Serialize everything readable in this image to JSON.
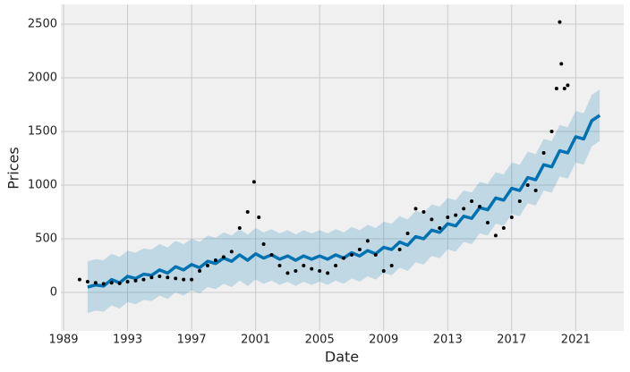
{
  "chart_data": {
    "type": "forecast",
    "x_label": "Date",
    "y_label": "Prices",
    "xlim": [
      1988.83,
      2024.0
    ],
    "ylim": [
      -358,
      2683
    ],
    "xticks": [
      1989,
      1993,
      1997,
      2001,
      2005,
      2009,
      2013,
      2017,
      2021
    ],
    "yticks": [
      0,
      500,
      1000,
      1500,
      2000,
      2500
    ],
    "grid": true,
    "actual": {
      "color": "#000000",
      "x": [
        1990.0,
        1990.5,
        1991.0,
        1991.5,
        1992.0,
        1992.5,
        1993.0,
        1993.5,
        1994.0,
        1994.5,
        1995.0,
        1995.5,
        1996.0,
        1996.5,
        1997.0,
        1997.5,
        1998.0,
        1998.5,
        1999.0,
        1999.5,
        2000.0,
        2000.5,
        2000.9,
        2001.2,
        2001.5,
        2002.0,
        2002.5,
        2003.0,
        2003.5,
        2004.0,
        2004.5,
        2005.0,
        2005.5,
        2006.0,
        2006.5,
        2007.0,
        2007.5,
        2008.0,
        2008.5,
        2009.0,
        2009.5,
        2010.0,
        2010.5,
        2011.0,
        2011.5,
        2012.0,
        2012.5,
        2013.0,
        2013.5,
        2014.0,
        2014.5,
        2015.0,
        2015.5,
        2016.0,
        2016.5,
        2017.0,
        2017.5,
        2018.0,
        2018.5,
        2019.0,
        2019.5,
        2019.8,
        2020.0,
        2020.1,
        2020.3,
        2020.5
      ],
      "values": [
        120,
        100,
        90,
        80,
        90,
        85,
        100,
        110,
        120,
        140,
        150,
        140,
        130,
        120,
        120,
        200,
        250,
        300,
        330,
        380,
        600,
        750,
        1030,
        700,
        450,
        350,
        250,
        180,
        200,
        250,
        220,
        200,
        180,
        250,
        320,
        350,
        400,
        480,
        350,
        200,
        250,
        400,
        550,
        780,
        750,
        680,
        600,
        700,
        720,
        780,
        850,
        800,
        650,
        530,
        600,
        700,
        850,
        1000,
        950,
        1300,
        1500,
        1900,
        2520,
        2130,
        1900,
        1930
      ]
    },
    "forecast": {
      "color": "#0072B2",
      "band_color": "#0072B2",
      "x": [
        1990.5,
        1991.0,
        1991.5,
        1992.0,
        1992.5,
        1993.0,
        1993.5,
        1994.0,
        1994.5,
        1995.0,
        1995.5,
        1996.0,
        1996.5,
        1997.0,
        1997.5,
        1998.0,
        1998.5,
        1999.0,
        1999.5,
        2000.0,
        2000.5,
        2001.0,
        2001.5,
        2002.0,
        2002.5,
        2003.0,
        2003.5,
        2004.0,
        2004.5,
        2005.0,
        2005.5,
        2006.0,
        2006.5,
        2007.0,
        2007.5,
        2008.0,
        2008.5,
        2009.0,
        2009.5,
        2010.0,
        2010.5,
        2011.0,
        2011.5,
        2012.0,
        2012.5,
        2013.0,
        2013.5,
        2014.0,
        2014.5,
        2015.0,
        2015.5,
        2016.0,
        2016.5,
        2017.0,
        2017.5,
        2018.0,
        2018.5,
        2019.0,
        2019.5,
        2020.0,
        2020.5,
        2021.0,
        2021.5,
        2022.0,
        2022.5
      ],
      "values": [
        50,
        70,
        60,
        120,
        90,
        150,
        130,
        170,
        160,
        210,
        180,
        240,
        210,
        260,
        230,
        290,
        270,
        320,
        290,
        350,
        300,
        360,
        320,
        350,
        310,
        340,
        300,
        340,
        310,
        340,
        310,
        350,
        320,
        370,
        340,
        390,
        360,
        420,
        400,
        470,
        440,
        520,
        500,
        580,
        560,
        640,
        620,
        710,
        690,
        790,
        770,
        880,
        860,
        970,
        950,
        1070,
        1050,
        1190,
        1170,
        1320,
        1300,
        1450,
        1430,
        1600,
        1650
      ],
      "upper": [
        290,
        310,
        300,
        360,
        330,
        390,
        370,
        410,
        400,
        450,
        420,
        480,
        450,
        500,
        470,
        530,
        510,
        560,
        530,
        590,
        540,
        600,
        560,
        590,
        550,
        580,
        540,
        580,
        550,
        580,
        550,
        590,
        560,
        610,
        580,
        630,
        600,
        660,
        640,
        710,
        680,
        760,
        740,
        820,
        800,
        880,
        860,
        950,
        930,
        1030,
        1010,
        1120,
        1100,
        1210,
        1190,
        1310,
        1290,
        1430,
        1410,
        1560,
        1540,
        1690,
        1670,
        1840,
        1890
      ],
      "lower": [
        -190,
        -170,
        -180,
        -120,
        -150,
        -90,
        -110,
        -70,
        -80,
        -30,
        -60,
        0,
        -30,
        20,
        -10,
        50,
        30,
        80,
        50,
        110,
        60,
        120,
        80,
        110,
        70,
        100,
        60,
        100,
        70,
        100,
        70,
        110,
        80,
        130,
        100,
        150,
        120,
        180,
        160,
        230,
        200,
        280,
        260,
        340,
        320,
        400,
        380,
        470,
        450,
        550,
        530,
        640,
        620,
        730,
        710,
        830,
        810,
        950,
        930,
        1080,
        1060,
        1210,
        1190,
        1360,
        1410
      ]
    }
  }
}
